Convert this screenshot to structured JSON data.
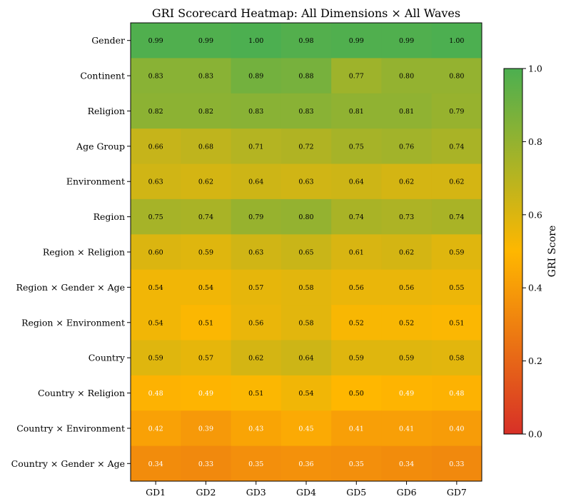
{
  "chart_data": {
    "type": "heatmap",
    "title": "GRI Scorecard Heatmap: All Dimensions × All Waves",
    "columns": [
      "GD1",
      "GD2",
      "GD3",
      "GD4",
      "GD5",
      "GD6",
      "GD7"
    ],
    "rows": [
      {
        "label": "Gender",
        "values": [
          "0.99",
          "0.99",
          "1.00",
          "0.98",
          "0.99",
          "0.99",
          "1.00"
        ]
      },
      {
        "label": "Continent",
        "values": [
          "0.83",
          "0.83",
          "0.89",
          "0.88",
          "0.77",
          "0.80",
          "0.80"
        ]
      },
      {
        "label": "Religion",
        "values": [
          "0.82",
          "0.82",
          "0.83",
          "0.83",
          "0.81",
          "0.81",
          "0.79"
        ]
      },
      {
        "label": "Age Group",
        "values": [
          "0.66",
          "0.68",
          "0.71",
          "0.72",
          "0.75",
          "0.76",
          "0.74"
        ]
      },
      {
        "label": "Environment",
        "values": [
          "0.63",
          "0.62",
          "0.64",
          "0.63",
          "0.64",
          "0.62",
          "0.62"
        ]
      },
      {
        "label": "Region",
        "values": [
          "0.75",
          "0.74",
          "0.79",
          "0.80",
          "0.74",
          "0.73",
          "0.74"
        ]
      },
      {
        "label": "Region × Religion",
        "values": [
          "0.60",
          "0.59",
          "0.63",
          "0.65",
          "0.61",
          "0.62",
          "0.59"
        ]
      },
      {
        "label": "Region × Gender × Age",
        "values": [
          "0.54",
          "0.54",
          "0.57",
          "0.58",
          "0.56",
          "0.56",
          "0.55"
        ]
      },
      {
        "label": "Region × Environment",
        "values": [
          "0.54",
          "0.51",
          "0.56",
          "0.58",
          "0.52",
          "0.52",
          "0.51"
        ]
      },
      {
        "label": "Country",
        "values": [
          "0.59",
          "0.57",
          "0.62",
          "0.64",
          "0.59",
          "0.59",
          "0.58"
        ]
      },
      {
        "label": "Country × Religion",
        "values": [
          "0.48",
          "0.49",
          "0.51",
          "0.54",
          "0.50",
          "0.49",
          "0.48"
        ]
      },
      {
        "label": "Country × Environment",
        "values": [
          "0.42",
          "0.39",
          "0.43",
          "0.45",
          "0.41",
          "0.41",
          "0.40"
        ]
      },
      {
        "label": "Country × Gender × Age",
        "values": [
          "0.34",
          "0.33",
          "0.35",
          "0.36",
          "0.35",
          "0.34",
          "0.33"
        ]
      }
    ],
    "colorbar": {
      "label": "GRI Score",
      "range": [
        0,
        1
      ],
      "ticks": [
        "0.0",
        "0.2",
        "0.4",
        "0.6",
        "0.8",
        "1.0"
      ],
      "colors": [
        "#d73027",
        "#ffb700",
        "#4caf50"
      ]
    }
  }
}
